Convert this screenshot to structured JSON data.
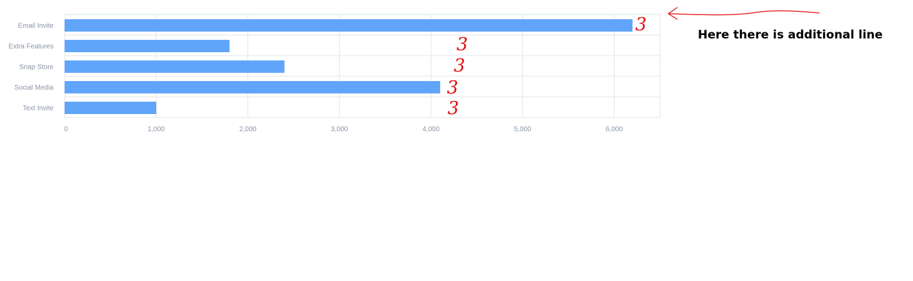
{
  "chart_data": {
    "type": "bar",
    "orientation": "horizontal",
    "categories": [
      "Email Invite",
      "Extra Features",
      "Snap Store",
      "Social Media",
      "Text Invite"
    ],
    "values": [
      6200,
      1800,
      2400,
      4100,
      1000
    ],
    "xlim": [
      0,
      6500
    ],
    "xticks": [
      0,
      1000,
      2000,
      3000,
      4000,
      5000,
      6000
    ],
    "xtick_labels": [
      "0",
      "1,000",
      "2,000",
      "3,000",
      "4,000",
      "5,000",
      "6,000"
    ],
    "grid": true,
    "bar_color": "#60a5fa",
    "title": "",
    "xlabel": "",
    "ylabel": ""
  },
  "annotation": {
    "text": "Here there is additional line",
    "color": "#000000",
    "marker_color": "#e01010",
    "marker_glyph": "3"
  }
}
